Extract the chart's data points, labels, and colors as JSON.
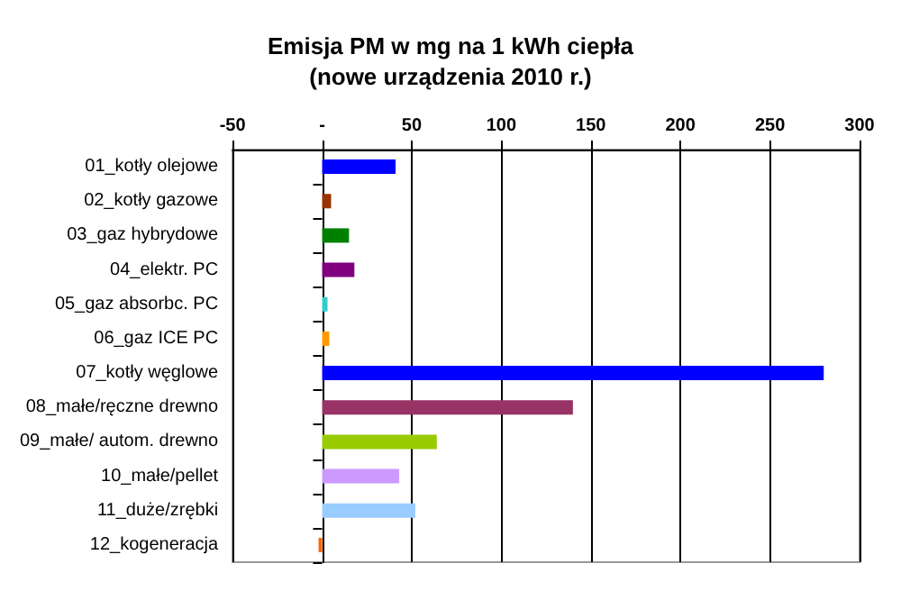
{
  "chart_data": {
    "type": "bar",
    "orientation": "horizontal",
    "title": "Emisja PM w mg na 1 kWh ciepła\n(nowe urządzenia 2010 r.)",
    "categories": [
      "01_kotły olejowe",
      "02_kotły gazowe",
      "03_gaz hybrydowe",
      "04_elektr. PC",
      "05_gaz absorbc. PC",
      "06_gaz ICE PC",
      "07_kotły węglowe",
      "08_małe/ręczne drewno",
      "09_małe/ autom. drewno",
      "10_małe/pellet",
      "11_duże/zrębki",
      "12_kogeneracja"
    ],
    "values": [
      41,
      5,
      15,
      18,
      3,
      4,
      280,
      140,
      64,
      43,
      52,
      -2
    ],
    "colors": [
      "#0000ff",
      "#993300",
      "#008000",
      "#800080",
      "#33cccc",
      "#ff9900",
      "#0000ff",
      "#993366",
      "#99cc00",
      "#cc99ff",
      "#99ccff",
      "#ff6600"
    ],
    "xlim": [
      -50,
      300
    ],
    "xticks": [
      -50,
      {
        "value": 0,
        "label": "-"
      },
      50,
      100,
      150,
      200,
      250,
      300
    ],
    "grid": "x"
  }
}
